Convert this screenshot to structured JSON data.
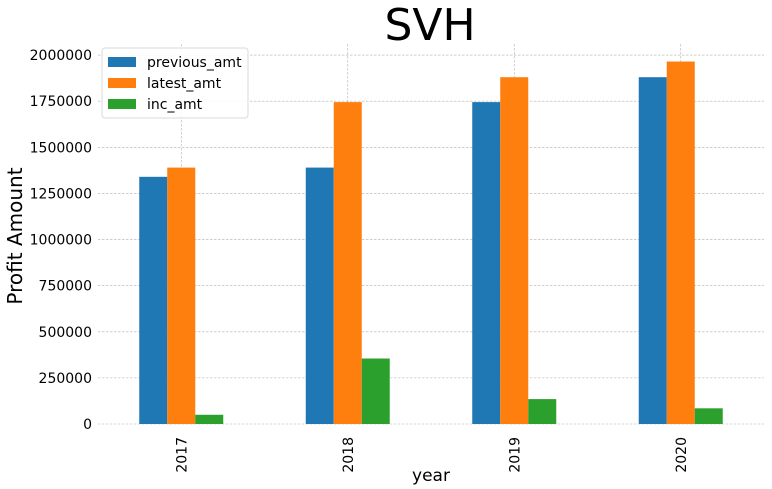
{
  "chart_data": {
    "type": "bar",
    "title": "SVH",
    "xlabel": "year",
    "ylabel": "Profit Amount",
    "categories": [
      "2017",
      "2018",
      "2019",
      "2020"
    ],
    "series": [
      {
        "name": "previous_amt",
        "color": "#1f77b4",
        "values": [
          1340000,
          1390000,
          1745000,
          1880000
        ]
      },
      {
        "name": "latest_amt",
        "color": "#ff7f0e",
        "values": [
          1390000,
          1745000,
          1880000,
          1965000
        ]
      },
      {
        "name": "inc_amt",
        "color": "#2ca02c",
        "values": [
          50000,
          355000,
          135000,
          85000
        ]
      }
    ],
    "ylim": [
      0,
      2060000
    ],
    "yticks": [
      0,
      250000,
      500000,
      750000,
      1000000,
      1250000,
      1500000,
      1750000,
      2000000
    ],
    "ytick_labels": [
      "0",
      "250000",
      "500000",
      "750000",
      "1000000",
      "1250000",
      "1500000",
      "1750000",
      "2000000"
    ],
    "grid": true,
    "legend_position": "top-left"
  }
}
